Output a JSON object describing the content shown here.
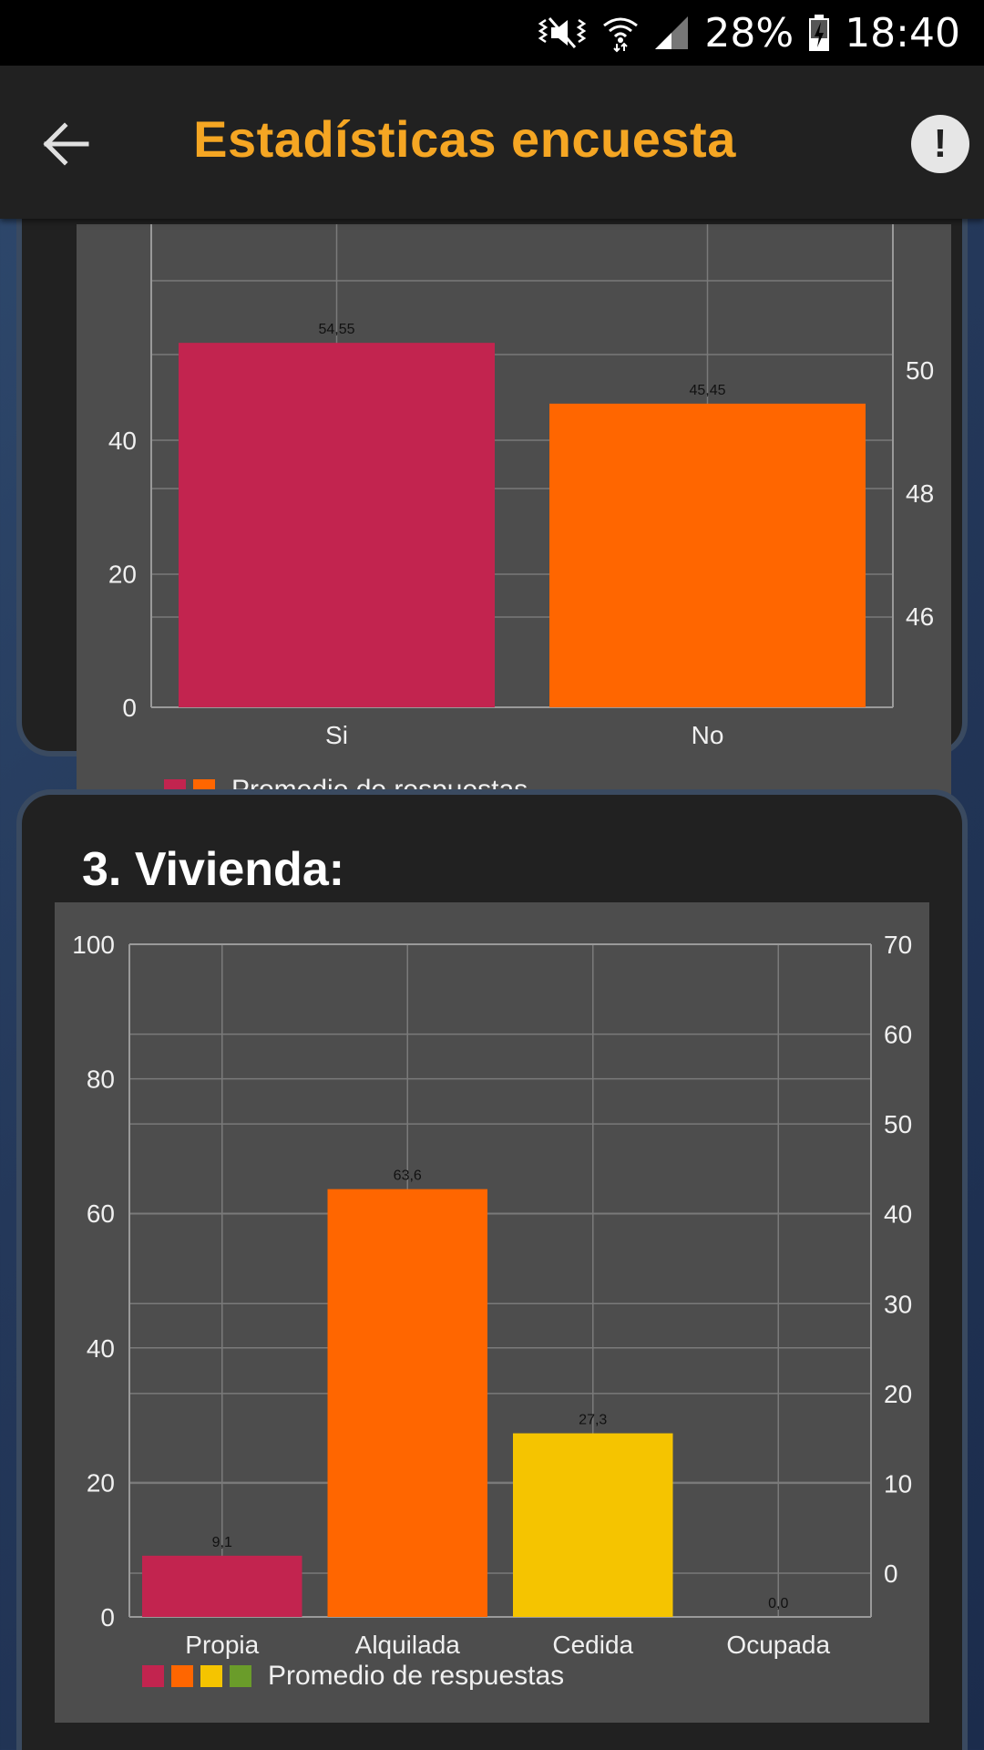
{
  "status_bar": {
    "battery": "28%",
    "time": "18:40",
    "icons": [
      "mute-vibrate-icon",
      "wifi-icon",
      "signal-icon",
      "battery-charging-icon"
    ]
  },
  "app_bar": {
    "title": "Estadísticas encuesta",
    "back_icon": "arrow-left-icon",
    "info_icon": "info-exclamation-icon",
    "info_glyph": "!"
  },
  "colors": {
    "accent": "#f5a623",
    "crimson": "#c2244f",
    "orange": "#ff6600",
    "yellow": "#f5c400",
    "green": "#6a9c2a",
    "panel": "#4d4d4d",
    "card": "#212121"
  },
  "chart_data": [
    {
      "type": "bar",
      "title": "",
      "categories": [
        "Si",
        "No"
      ],
      "values": [
        54.55,
        45.45
      ],
      "value_labels": [
        "54,55",
        "45,45"
      ],
      "colors": [
        "#c2244f",
        "#ff6600"
      ],
      "y_ticks_left": [
        "0",
        "20",
        "40"
      ],
      "y_ticks_right": [
        "46",
        "48",
        "50"
      ],
      "ylim": [
        0,
        60
      ],
      "grid": true,
      "legend": {
        "placement": "bottom-left",
        "label": "Promedio de respuestas",
        "swatches": [
          "#c2244f",
          "#ff6600"
        ]
      }
    },
    {
      "type": "bar",
      "title": "3. Vivienda:",
      "categories": [
        "Propia",
        "Alquilada",
        "Cedida",
        "Ocupada"
      ],
      "values": [
        9.1,
        63.6,
        27.3,
        0.0
      ],
      "value_labels": [
        "9,1",
        "63,6",
        "27,3",
        "0,0"
      ],
      "colors": [
        "#c2244f",
        "#ff6600",
        "#f5c400",
        "#6a9c2a"
      ],
      "y_ticks_left": [
        "0",
        "20",
        "40",
        "60",
        "80",
        "100"
      ],
      "y_ticks_right": [
        "0",
        "10",
        "20",
        "30",
        "40",
        "50",
        "60",
        "70"
      ],
      "ylim": [
        0,
        100
      ],
      "grid": true,
      "legend": {
        "placement": "bottom-left",
        "label": "Promedio de respuestas",
        "swatches": [
          "#c2244f",
          "#ff6600",
          "#f5c400",
          "#6a9c2a"
        ]
      }
    }
  ]
}
